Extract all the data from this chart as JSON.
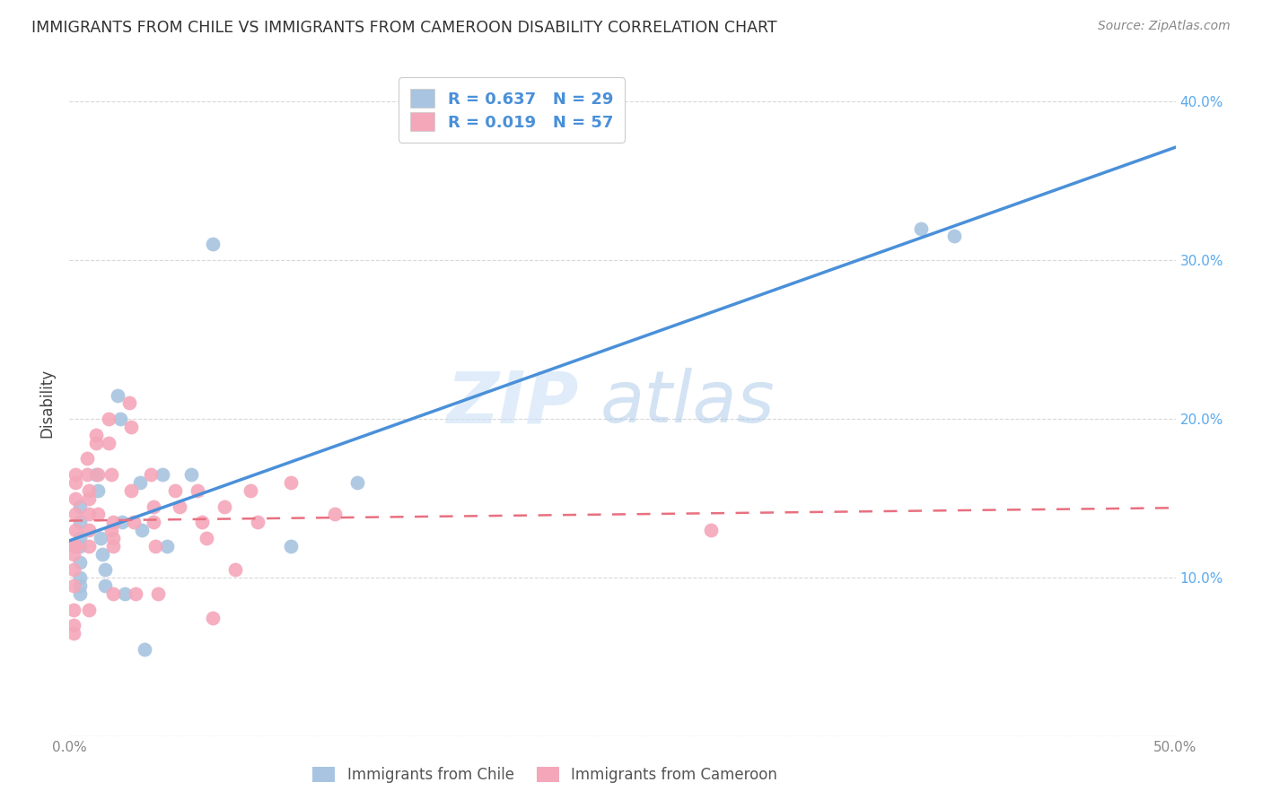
{
  "title": "IMMIGRANTS FROM CHILE VS IMMIGRANTS FROM CAMEROON DISABILITY CORRELATION CHART",
  "source": "Source: ZipAtlas.com",
  "ylabel": "Disability",
  "xlim": [
    0.0,
    0.5
  ],
  "ylim": [
    0.0,
    0.42
  ],
  "xticks": [
    0.0,
    0.1,
    0.2,
    0.3,
    0.4,
    0.5
  ],
  "yticks": [
    0.0,
    0.1,
    0.2,
    0.3,
    0.4
  ],
  "xticklabels": [
    "0.0%",
    "",
    "",
    "",
    "",
    "50.0%"
  ],
  "yticklabels": [
    "",
    "",
    "",
    "",
    ""
  ],
  "right_yticklabels": [
    "",
    "10.0%",
    "20.0%",
    "30.0%",
    "40.0%"
  ],
  "chile_color": "#a8c4e0",
  "cameroon_color": "#f4a7b9",
  "chile_line_color": "#4a90d9",
  "cameroon_line_color": "#e87080",
  "right_tick_color": "#5aaaee",
  "legend_text_color": "#4a90d9",
  "R_chile": 0.637,
  "N_chile": 29,
  "R_cameroon": 0.019,
  "N_cameroon": 57,
  "chile_x": [
    0.005,
    0.005,
    0.005,
    0.005,
    0.005,
    0.005,
    0.005,
    0.005,
    0.012,
    0.013,
    0.014,
    0.015,
    0.016,
    0.016,
    0.022,
    0.023,
    0.024,
    0.025,
    0.032,
    0.033,
    0.034,
    0.042,
    0.044,
    0.055,
    0.065,
    0.1,
    0.13,
    0.385,
    0.4
  ],
  "chile_y": [
    0.125,
    0.135,
    0.145,
    0.12,
    0.11,
    0.1,
    0.095,
    0.09,
    0.165,
    0.155,
    0.125,
    0.115,
    0.105,
    0.095,
    0.215,
    0.2,
    0.135,
    0.09,
    0.16,
    0.13,
    0.055,
    0.165,
    0.12,
    0.165,
    0.31,
    0.12,
    0.16,
    0.32,
    0.315
  ],
  "cameroon_x": [
    0.002,
    0.002,
    0.002,
    0.002,
    0.002,
    0.002,
    0.002,
    0.003,
    0.003,
    0.003,
    0.003,
    0.003,
    0.003,
    0.003,
    0.008,
    0.008,
    0.009,
    0.009,
    0.009,
    0.009,
    0.009,
    0.009,
    0.012,
    0.012,
    0.013,
    0.013,
    0.018,
    0.018,
    0.019,
    0.019,
    0.02,
    0.02,
    0.02,
    0.02,
    0.027,
    0.028,
    0.028,
    0.029,
    0.03,
    0.037,
    0.038,
    0.038,
    0.039,
    0.04,
    0.048,
    0.05,
    0.058,
    0.06,
    0.062,
    0.065,
    0.07,
    0.075,
    0.082,
    0.085,
    0.1,
    0.12,
    0.29
  ],
  "cameroon_y": [
    0.12,
    0.115,
    0.105,
    0.095,
    0.08,
    0.07,
    0.065,
    0.165,
    0.16,
    0.15,
    0.14,
    0.13,
    0.12,
    0.12,
    0.175,
    0.165,
    0.155,
    0.15,
    0.14,
    0.13,
    0.12,
    0.08,
    0.19,
    0.185,
    0.165,
    0.14,
    0.2,
    0.185,
    0.165,
    0.13,
    0.135,
    0.125,
    0.12,
    0.09,
    0.21,
    0.195,
    0.155,
    0.135,
    0.09,
    0.165,
    0.145,
    0.135,
    0.12,
    0.09,
    0.155,
    0.145,
    0.155,
    0.135,
    0.125,
    0.075,
    0.145,
    0.105,
    0.155,
    0.135,
    0.16,
    0.14,
    0.13
  ],
  "watermark_zip": "ZIP",
  "watermark_atlas": "atlas",
  "background_color": "#ffffff",
  "grid_color": "#d8d8d8"
}
